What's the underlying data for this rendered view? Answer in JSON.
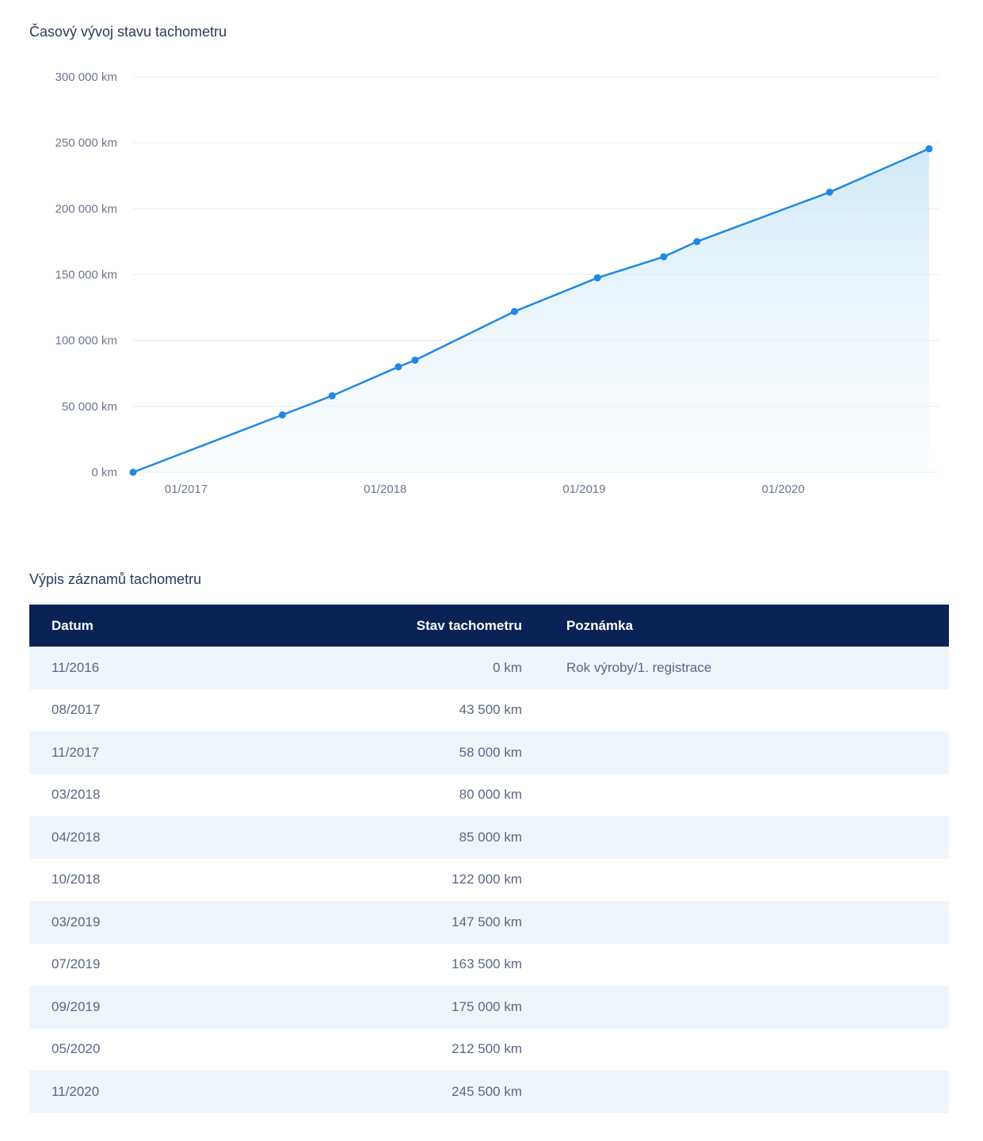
{
  "chart_title": "Časový vývoj stavu tachometru",
  "table_title": "Výpis záznamů tachometru",
  "chart_data": {
    "type": "area",
    "x_axis": {
      "type": "date",
      "min": "2016-11",
      "max": "2020-11",
      "tick_labels": [
        "01/2017",
        "01/2018",
        "01/2019",
        "01/2020"
      ],
      "ticks": [
        "2017-01",
        "2018-01",
        "2019-01",
        "2020-01"
      ]
    },
    "y_axis": {
      "min": 0,
      "max": 300000,
      "step": 50000,
      "unit": "km",
      "tick_labels": [
        "0 km",
        "50 000 km",
        "100 000 km",
        "150 000 km",
        "200 000 km",
        "250 000 km",
        "300 000 km"
      ]
    },
    "grid": true,
    "colors": {
      "line": "#1e88e5",
      "fill": "#d6ecf9"
    },
    "points": [
      {
        "x": "2016-11",
        "y": 0
      },
      {
        "x": "2017-08",
        "y": 43500
      },
      {
        "x": "2017-11",
        "y": 58000
      },
      {
        "x": "2018-03",
        "y": 80000
      },
      {
        "x": "2018-04",
        "y": 85000
      },
      {
        "x": "2018-10",
        "y": 122000
      },
      {
        "x": "2019-03",
        "y": 147500
      },
      {
        "x": "2019-07",
        "y": 163500
      },
      {
        "x": "2019-09",
        "y": 175000
      },
      {
        "x": "2020-05",
        "y": 212500
      },
      {
        "x": "2020-11",
        "y": 245500
      }
    ]
  },
  "table": {
    "headers": {
      "date": "Datum",
      "value": "Stav tachometru",
      "note": "Poznámka"
    },
    "rows": [
      {
        "date": "11/2016",
        "value": "0 km",
        "note": "Rok výroby/1. registrace"
      },
      {
        "date": "08/2017",
        "value": "43 500 km",
        "note": ""
      },
      {
        "date": "11/2017",
        "value": "58 000 km",
        "note": ""
      },
      {
        "date": "03/2018",
        "value": "80 000 km",
        "note": ""
      },
      {
        "date": "04/2018",
        "value": "85 000 km",
        "note": ""
      },
      {
        "date": "10/2018",
        "value": "122 000 km",
        "note": ""
      },
      {
        "date": "03/2019",
        "value": "147 500 km",
        "note": ""
      },
      {
        "date": "07/2019",
        "value": "163 500 km",
        "note": ""
      },
      {
        "date": "09/2019",
        "value": "175 000 km",
        "note": ""
      },
      {
        "date": "05/2020",
        "value": "212 500 km",
        "note": ""
      },
      {
        "date": "11/2020",
        "value": "245 500 km",
        "note": ""
      }
    ]
  }
}
